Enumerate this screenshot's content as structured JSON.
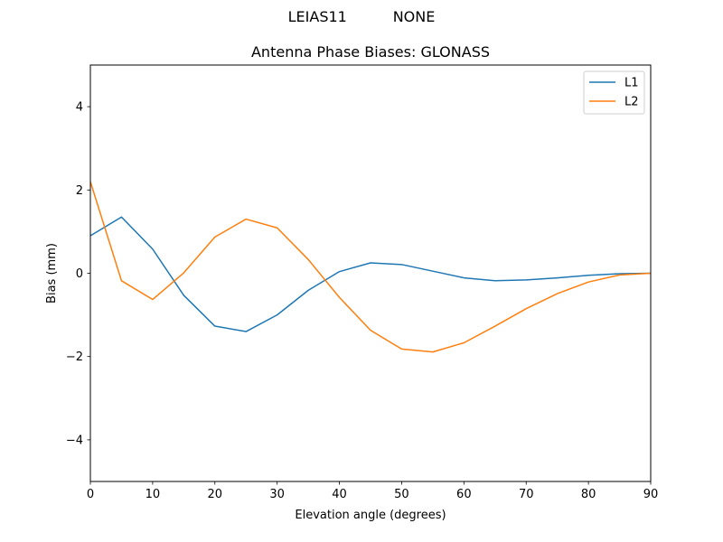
{
  "figure": {
    "suptitle": "LEIAS11          NONE"
  },
  "chart_data": {
    "type": "line",
    "title": "Antenna Phase Biases: GLONASS",
    "xlabel": "Elevation angle (degrees)",
    "ylabel": "Bias (mm)",
    "xlim": [
      0,
      90
    ],
    "ylim": [
      -5,
      5
    ],
    "xticks": [
      0,
      10,
      20,
      30,
      40,
      50,
      60,
      70,
      80,
      90
    ],
    "yticks": [
      -4,
      -2,
      0,
      2,
      4
    ],
    "ytick_labels": [
      "−4",
      "−2",
      "0",
      "2",
      "4"
    ],
    "grid": false,
    "legend_position": "upper-right",
    "x": [
      0,
      5,
      10,
      15,
      20,
      25,
      30,
      35,
      40,
      45,
      50,
      55,
      60,
      65,
      70,
      75,
      80,
      85,
      90
    ],
    "series": [
      {
        "name": "L1",
        "color": "#1f77b4",
        "values": [
          0.9,
          1.35,
          0.58,
          -0.53,
          -1.27,
          -1.4,
          -1.0,
          -0.41,
          0.04,
          0.25,
          0.21,
          0.05,
          -0.11,
          -0.18,
          -0.16,
          -0.11,
          -0.05,
          -0.01,
          0.0
        ]
      },
      {
        "name": "L2",
        "color": "#ff7f0e",
        "values": [
          2.2,
          -0.18,
          -0.63,
          0.01,
          0.87,
          1.3,
          1.09,
          0.33,
          -0.58,
          -1.37,
          -1.82,
          -1.89,
          -1.67,
          -1.27,
          -0.85,
          -0.49,
          -0.21,
          -0.04,
          0.0
        ]
      }
    ]
  }
}
